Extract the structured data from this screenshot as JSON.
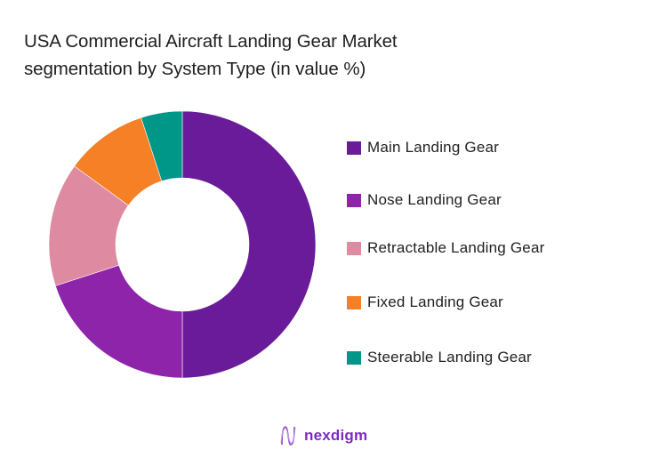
{
  "title": {
    "line1": "USA Commercial Aircraft Landing Gear Market",
    "line2": "segmentation by System Type (in value %)"
  },
  "chart_data": {
    "type": "pie",
    "subtype": "donut",
    "title": "USA Commercial Aircraft Landing Gear Market segmentation by System Type (in value %)",
    "categories": [
      "Main Landing Gear",
      "Nose Landing Gear",
      "Retractable Landing Gear",
      "Fixed Landing Gear",
      "Steerable Landing Gear"
    ],
    "values": [
      50,
      20,
      15,
      10,
      5
    ],
    "colors": [
      "#6a1b9a",
      "#8e24aa",
      "#de8aa0",
      "#f58025",
      "#009688"
    ],
    "start_angle": "12 o'clock",
    "direction": "clockwise",
    "legend_position": "right",
    "data_labels": false
  },
  "legend": {
    "items": [
      {
        "label": "Main Landing Gear",
        "color": "#6a1b9a"
      },
      {
        "label": "Nose Landing Gear",
        "color": "#8e24aa"
      },
      {
        "label": "Retractable Landing Gear",
        "color": "#de8aa0"
      },
      {
        "label": "Fixed Landing Gear",
        "color": "#f58025"
      },
      {
        "label": "Steerable Landing Gear",
        "color": "#009688"
      }
    ]
  },
  "branding": {
    "logo_text": "nexdigm",
    "logo_icon": "nexdigm-wave-icon"
  }
}
